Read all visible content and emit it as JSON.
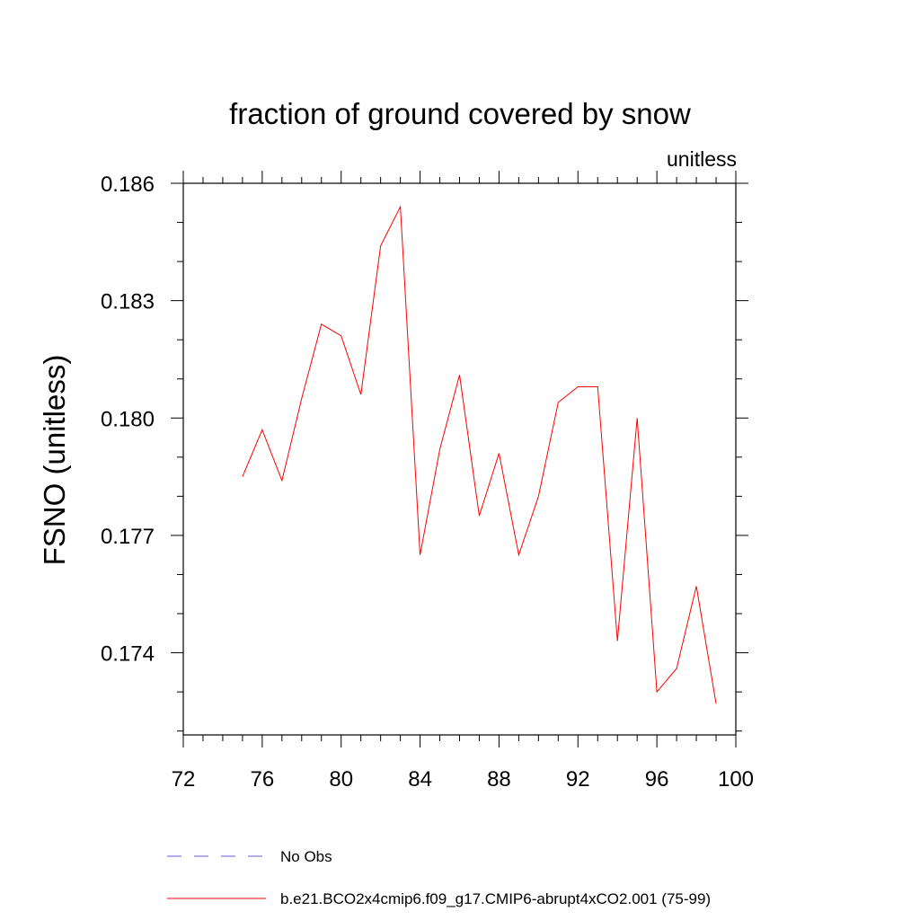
{
  "chart_data": {
    "type": "line",
    "title": "fraction of ground covered by snow",
    "units_label": "unitless",
    "xlabel": "",
    "ylabel": "FSNO  (unitless)",
    "xlim": [
      72,
      100
    ],
    "ylim": [
      0.1719,
      0.186
    ],
    "x_ticks": [
      72,
      76,
      80,
      84,
      88,
      92,
      96,
      100
    ],
    "y_ticks": [
      0.174,
      0.177,
      0.18,
      0.183,
      0.186
    ],
    "x_tick_labels": [
      "72",
      "76",
      "80",
      "84",
      "88",
      "92",
      "96",
      "100"
    ],
    "y_tick_labels": [
      "0.174",
      "0.177",
      "0.180",
      "0.183",
      "0.186"
    ],
    "grid": false,
    "legend_position": "bottom",
    "series": [
      {
        "name": "b.e21.BCO2x4cmip6.f09_g17.CMIP6-abrupt4xCO2.001 (75-99)",
        "color": "#ff0000",
        "dash": "solid",
        "x": [
          75,
          76,
          77,
          78,
          79,
          80,
          81,
          82,
          83,
          84,
          85,
          86,
          87,
          88,
          89,
          90,
          91,
          92,
          93,
          94,
          95,
          96,
          97,
          98,
          99
        ],
        "values": [
          0.1785,
          0.1797,
          0.1784,
          0.1805,
          0.1824,
          0.1821,
          0.1806,
          0.1844,
          0.1854,
          0.1765,
          0.1792,
          0.1811,
          0.1775,
          0.1791,
          0.1765,
          0.178,
          0.1804,
          0.1808,
          0.1808,
          0.1743,
          0.18,
          0.173,
          0.1736,
          0.1757,
          0.1727
        ]
      }
    ],
    "legend": [
      {
        "label": "No Obs",
        "color": "#6a5acd",
        "dash": "dashed"
      },
      {
        "label": "b.e21.BCO2x4cmip6.f09_g17.CMIP6-abrupt4xCO2.001 (75-99)",
        "color": "#ff0000",
        "dash": "solid"
      }
    ]
  }
}
